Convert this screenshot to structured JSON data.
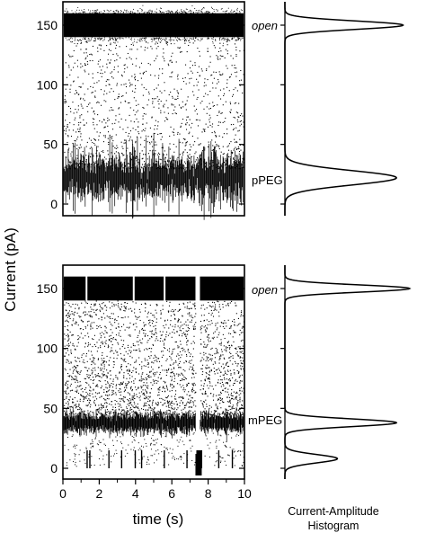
{
  "chart_data": [
    {
      "type": "scatter",
      "panel": "top",
      "description_series": "current trace (pPEG)",
      "ylim": [
        0,
        160
      ],
      "yticks": [
        0,
        50,
        100,
        150
      ],
      "xlim": [
        0,
        10
      ],
      "levels_pA": {
        "open": 150,
        "blocked": 22
      },
      "grid": false
    },
    {
      "type": "line",
      "panel": "top-histogram",
      "peaks": [
        {
          "label": "open",
          "current_pA": 150,
          "relative_count": 0.9
        },
        {
          "label": "pPEG",
          "current_pA": 22,
          "relative_count": 0.85
        }
      ]
    },
    {
      "type": "scatter",
      "panel": "bottom",
      "ylim": [
        0,
        160
      ],
      "yticks": [
        0,
        50,
        100,
        150
      ],
      "xlim": [
        0,
        10
      ],
      "xticks": [
        0,
        2,
        4,
        6,
        8,
        10
      ],
      "levels_pA": {
        "open": 150,
        "blocked": 38,
        "deep": 5
      },
      "gaps_s": [
        7.4
      ],
      "grid": false
    },
    {
      "type": "line",
      "panel": "bottom-histogram",
      "peaks": [
        {
          "label": "open",
          "current_pA": 150,
          "relative_count": 0.95
        },
        {
          "label": "mPEG",
          "current_pA": 38,
          "relative_count": 0.85
        },
        {
          "label": "",
          "current_pA": 8,
          "relative_count": 0.4
        }
      ]
    }
  ],
  "labels": {
    "ylabel": "Current (pA)",
    "xlabel": "time (s)",
    "open_top": "open",
    "ppeg": "pPEG",
    "open_bottom": "open",
    "mpeg": "mPEG",
    "hist_caption_line1": "Current-Amplitude",
    "hist_caption_line2": "Histogram"
  },
  "ticks": {
    "top_y": [
      "0",
      "50",
      "100",
      "150"
    ],
    "bottom_y": [
      "0",
      "50",
      "100",
      "150"
    ],
    "bottom_x": [
      "0",
      "2",
      "4",
      "6",
      "8",
      "10"
    ]
  }
}
